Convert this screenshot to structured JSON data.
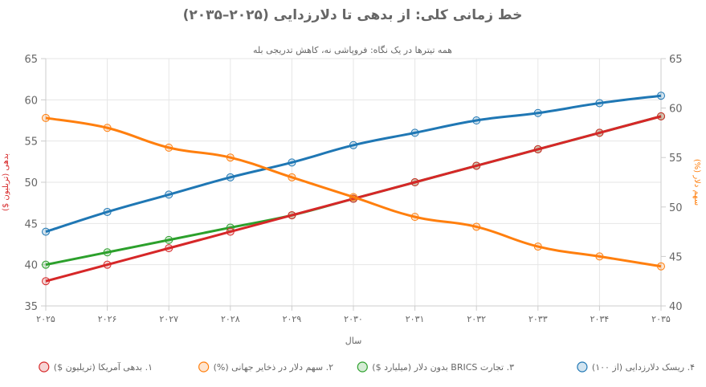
{
  "chart_data": {
    "type": "line",
    "title": "خط زمانی کلی: از بدهی تا دلارزدایی (۲۰۲۵–۲۰۳۵)",
    "subtitle": "همه تیترها در یک نگاه: فروپاشی نه، کاهش تدریجی بله",
    "xlabel": "سال",
    "ylabel_left": "بدهی (تریلیون $)",
    "ylabel_right": "سهم دلار (%)",
    "categories": [
      "۲۰۲۵",
      "۲۰۲۶",
      "۲۰۲۷",
      "۲۰۲۸",
      "۲۰۲۹",
      "۲۰۳۰",
      "۲۰۳۱",
      "۲۰۳۲",
      "۲۰۳۳",
      "۲۰۳۴",
      "۲۰۳۵"
    ],
    "ylim_left": [
      35,
      65
    ],
    "yticks_left": [
      35,
      40,
      45,
      50,
      55,
      60,
      65
    ],
    "ylim_right": [
      40,
      65
    ],
    "yticks_right": [
      40,
      45,
      50,
      55,
      60,
      65
    ],
    "grid": true,
    "legend_position": "bottom",
    "series": [
      {
        "name": "۱. بدهی آمریکا (تریلیون $)",
        "axis": "left",
        "color": "#d62728",
        "values": [
          38,
          40,
          42,
          44,
          46,
          48,
          50,
          52,
          54,
          56,
          58
        ]
      },
      {
        "name": "۲. سهم دلار در ذخایر جهانی (%)",
        "axis": "right",
        "color": "#ff7f0e",
        "values": [
          59,
          58,
          56,
          55,
          53,
          51,
          49,
          48,
          46,
          45,
          44
        ]
      },
      {
        "name": "۳. تجارت BRICS بدون دلار (میلیارد $)",
        "axis": "left",
        "color": "#2ca02c",
        "values": [
          40,
          41.5,
          43,
          44.5,
          46,
          48,
          50,
          52,
          54,
          56,
          58
        ]
      },
      {
        "name": "۴. ریسک دلارزدایی (از ۱۰۰)",
        "axis": "left",
        "color": "#1f77b4",
        "values": [
          44,
          46.4,
          48.5,
          50.6,
          52.4,
          54.5,
          56,
          57.5,
          58.4,
          59.6,
          60.5
        ]
      }
    ],
    "draw_order": [
      3,
      2,
      0,
      1
    ]
  }
}
